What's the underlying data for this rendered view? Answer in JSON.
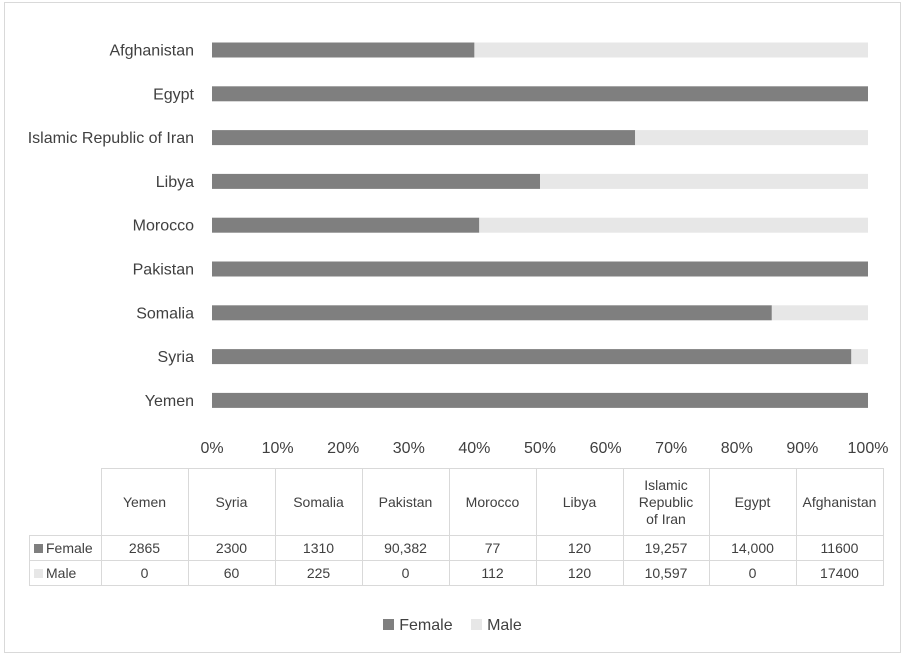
{
  "colors": {
    "female": "#7f7f7f",
    "male": "#e7e7e7",
    "text": "#404040",
    "grid": "#d9d9d9"
  },
  "chart_data": {
    "type": "bar",
    "orientation": "horizontal",
    "stacked": "percent",
    "categories": [
      "Afghanistan",
      "Egypt",
      "Islamic Republic of Iran",
      "Libya",
      "Morocco",
      "Pakistan",
      "Somalia",
      "Syria",
      "Yemen"
    ],
    "series": [
      {
        "name": "Female",
        "values": [
          11600,
          14000,
          19257,
          120,
          77,
          90382,
          1310,
          2300,
          2865
        ]
      },
      {
        "name": "Male",
        "values": [
          17400,
          0,
          10597,
          120,
          112,
          0,
          225,
          60,
          0
        ]
      }
    ],
    "xticks": [
      "0%",
      "10%",
      "20%",
      "30%",
      "40%",
      "50%",
      "60%",
      "70%",
      "80%",
      "90%",
      "100%"
    ],
    "xlim": [
      0,
      100
    ],
    "legend": "bottom",
    "grid": false
  },
  "table": {
    "columns": [
      "Yemen",
      "Syria",
      "Somalia",
      "Pakistan",
      "Morocco",
      "Libya",
      "Islamic Republic of Iran",
      "Egypt",
      "Afghanistan"
    ],
    "rows": [
      {
        "label": "Female",
        "values": [
          "2865",
          "2300",
          "1310",
          "90,382",
          "77",
          "120",
          "19,257",
          "14,000",
          "11600"
        ]
      },
      {
        "label": "Male",
        "values": [
          "0",
          "60",
          "225",
          "0",
          "112",
          "120",
          "10,597",
          "0",
          "17400"
        ]
      }
    ]
  },
  "legend": {
    "female": "Female",
    "male": "Male"
  }
}
